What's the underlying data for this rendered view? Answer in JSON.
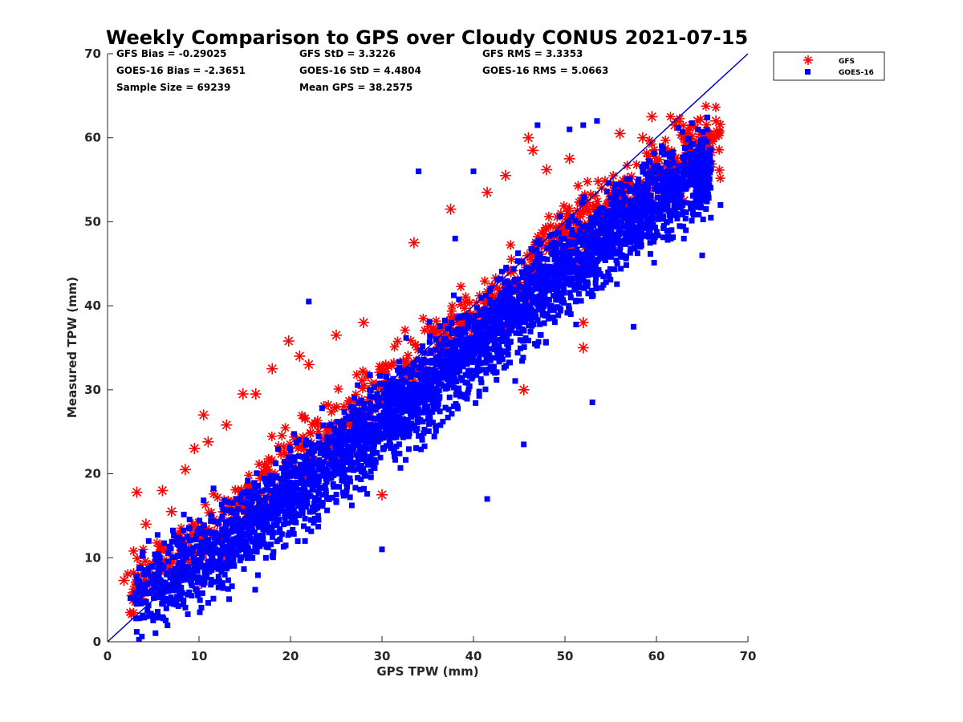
{
  "chart_data": {
    "type": "scatter",
    "title": "Weekly Comparison to GPS over Cloudy CONUS 2021-07-15",
    "xlabel": "GPS TPW (mm)",
    "ylabel": "Measured TPW (mm)",
    "xlim": [
      0,
      70
    ],
    "ylim": [
      0,
      70
    ],
    "xticks": [
      "0",
      "10",
      "20",
      "30",
      "40",
      "50",
      "60",
      "70"
    ],
    "yticks": [
      "0",
      "10",
      "20",
      "30",
      "40",
      "50",
      "60",
      "70"
    ],
    "grid": false,
    "legend_position": "outside-top-right",
    "stats": [
      [
        "GFS Bias = -0.29025",
        "GFS StD = 3.3226",
        "GFS RMS = 3.3353"
      ],
      [
        "GOES-16 Bias = -2.3651",
        "GOES-16 StD = 4.4804",
        "GOES-16 RMS = 5.0663"
      ],
      [
        "Sample Size = 69239",
        "Mean GPS = 38.2575"
      ]
    ],
    "reference_line": {
      "x": [
        0,
        70
      ],
      "y": [
        0,
        70
      ],
      "color": "#0000cc"
    },
    "series": [
      {
        "name": "GFS",
        "marker": "asterisk",
        "color": "#ff0000",
        "band_center": [
          [
            2,
            6.5
          ],
          [
            10,
            12
          ],
          [
            20,
            22
          ],
          [
            30,
            30
          ],
          [
            40,
            38.5
          ],
          [
            50,
            48
          ],
          [
            60,
            56
          ],
          [
            67,
            60
          ]
        ],
        "band_halfwidth": 6,
        "sample_points": [
          [
            1.8,
            7.3
          ],
          [
            2.8,
            5
          ],
          [
            3.2,
            17.8
          ],
          [
            4.2,
            14
          ],
          [
            4.5,
            8
          ],
          [
            6,
            18
          ],
          [
            7,
            15.5
          ],
          [
            8.5,
            20.5
          ],
          [
            9.5,
            23
          ],
          [
            10.5,
            27
          ],
          [
            11,
            23.8
          ],
          [
            13,
            25.8
          ],
          [
            14.8,
            29.5
          ],
          [
            16.2,
            29.5
          ],
          [
            18,
            32.5
          ],
          [
            19.8,
            35.8
          ],
          [
            21,
            34
          ],
          [
            22,
            33
          ],
          [
            25,
            36.5
          ],
          [
            28,
            38
          ],
          [
            33.5,
            47.5
          ],
          [
            37.5,
            51.5
          ],
          [
            41.5,
            53.5
          ],
          [
            43.5,
            55.5
          ],
          [
            46,
            60
          ],
          [
            46.5,
            58.5
          ],
          [
            52,
            35
          ],
          [
            52,
            38
          ],
          [
            56,
            60.5
          ],
          [
            59.5,
            62.5
          ],
          [
            62,
            61.5
          ],
          [
            64.5,
            62
          ],
          [
            66.5,
            62
          ],
          [
            65.5,
            59.5
          ],
          [
            63,
            52.5
          ],
          [
            58.5,
            60
          ],
          [
            50.5,
            57.5
          ],
          [
            48,
            56.2
          ],
          [
            30,
            17.5
          ],
          [
            45.5,
            30
          ]
        ]
      },
      {
        "name": "GOES-16",
        "marker": "square",
        "color": "#0000ff",
        "band_center": [
          [
            2,
            5
          ],
          [
            10,
            9.5
          ],
          [
            20,
            17.5
          ],
          [
            30,
            26
          ],
          [
            40,
            35
          ],
          [
            50,
            44.5
          ],
          [
            60,
            53
          ],
          [
            67,
            57
          ]
        ],
        "band_halfwidth": 8,
        "sample_points": [
          [
            2.5,
            5.2
          ],
          [
            3.5,
            2.8
          ],
          [
            4,
            8
          ],
          [
            4.5,
            12
          ],
          [
            6.5,
            4.8
          ],
          [
            22,
            40.5
          ],
          [
            34,
            56
          ],
          [
            40,
            56
          ],
          [
            47,
            61.5
          ],
          [
            50.5,
            61
          ],
          [
            52,
            61.5
          ],
          [
            53.5,
            62
          ],
          [
            41.5,
            17
          ],
          [
            45.5,
            23.5
          ],
          [
            53,
            28.5
          ],
          [
            30,
            11
          ],
          [
            63,
            48
          ],
          [
            65,
            46
          ],
          [
            67,
            52
          ],
          [
            57.5,
            37.5
          ],
          [
            38,
            48
          ]
        ]
      }
    ]
  }
}
